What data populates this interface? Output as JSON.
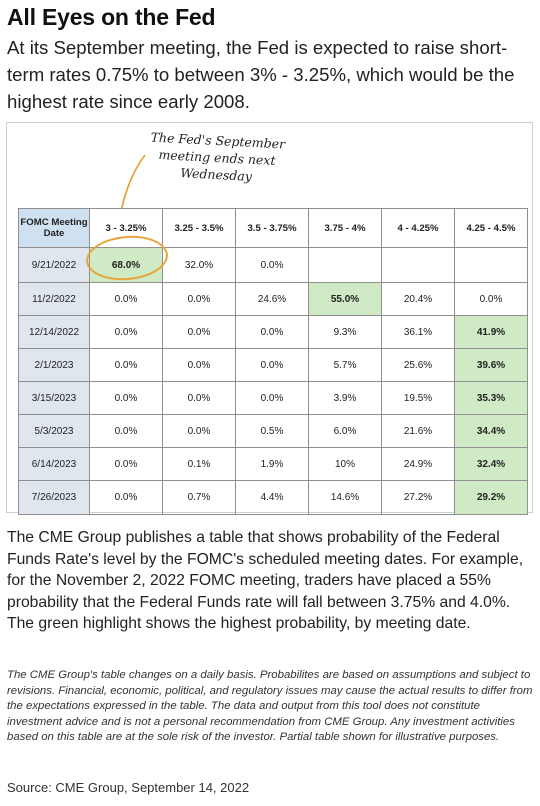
{
  "header": {
    "title": "All Eyes on the Fed",
    "subtitle": "At its September meeting, the Fed is expected to raise short-term rates 0.75% to between 3% - 3.25%, which would be the highest rate since early 2008."
  },
  "annotation": "The Fed's September meeting ends next Wednesday",
  "table": {
    "corner_label": "FOMC Meeting Date",
    "columns": [
      "3 - 3.25%",
      "3.25 - 3.5%",
      "3.5 - 3.75%",
      "3.75 - 4%",
      "4 - 4.25%",
      "4.25 - 4.5%"
    ],
    "rows": [
      {
        "date": "9/21/2022",
        "cells": [
          "68.0%",
          "32.0%",
          "0.0%",
          "",
          "",
          ""
        ],
        "highlight": 0
      },
      {
        "date": "11/2/2022",
        "cells": [
          "0.0%",
          "0.0%",
          "24.6%",
          "55.0%",
          "20.4%",
          "0.0%"
        ],
        "highlight": 3
      },
      {
        "date": "12/14/2022",
        "cells": [
          "0.0%",
          "0.0%",
          "0.0%",
          "9.3%",
          "36.1%",
          "41.9%"
        ],
        "highlight": 5
      },
      {
        "date": "2/1/2023",
        "cells": [
          "0.0%",
          "0.0%",
          "0.0%",
          "5.7%",
          "25.6%",
          "39.6%"
        ],
        "highlight": 5
      },
      {
        "date": "3/15/2023",
        "cells": [
          "0.0%",
          "0.0%",
          "0.0%",
          "3.9%",
          "19.5%",
          "35.3%"
        ],
        "highlight": 5
      },
      {
        "date": "5/3/2023",
        "cells": [
          "0.0%",
          "0.0%",
          "0.5%",
          "6.0%",
          "21.6%",
          "34.4%"
        ],
        "highlight": 5
      },
      {
        "date": "6/14/2023",
        "cells": [
          "0.0%",
          "0.1%",
          "1.9%",
          "10%",
          "24.9%",
          "32.4%"
        ],
        "highlight": 5
      },
      {
        "date": "7/26/2023",
        "cells": [
          "0.0%",
          "0.7%",
          "4.4%",
          "14.6%",
          "27.2%",
          "29.2%"
        ],
        "highlight": 5
      }
    ]
  },
  "body_text": "The CME Group publishes a table that shows probability of the Federal Funds Rate's level by the FOMC's scheduled meeting dates. For example, for the November 2, 2022 FOMC meeting, traders have placed a 55% probability that the Federal Funds rate will fall between 3.75% and 4.0%. The green highlight shows the highest probability, by meeting date.",
  "disclaimer": "The CME Group's table changes on a daily basis. Probabilites are based on assumptions and subject to revisions. Financial, economic, political, and regulatory issues may cause the actual results to differ from the expectations expressed in the table. The data and output from this tool does not constitute investment advice and is not a personal recommendation from CME Group.  Any investment activities based on this table are at the sole risk of the investor. Partial table shown for illustrative purposes.",
  "source": "Source: CME Group, September 14, 2022",
  "colors": {
    "highlight": "#cfeac4",
    "header_blue": "#cfe0f1",
    "date_gray": "#dfe6ee",
    "annotation_circle": "#e6a43a"
  }
}
